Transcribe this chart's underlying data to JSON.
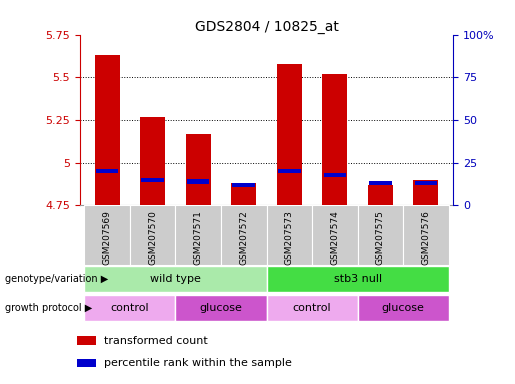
{
  "title": "GDS2804 / 10825_at",
  "samples": [
    "GSM207569",
    "GSM207570",
    "GSM207571",
    "GSM207572",
    "GSM207573",
    "GSM207574",
    "GSM207575",
    "GSM207576"
  ],
  "red_values": [
    5.63,
    5.27,
    5.17,
    4.88,
    5.58,
    5.52,
    4.87,
    4.9
  ],
  "blue_values": [
    4.95,
    4.9,
    4.89,
    4.87,
    4.95,
    4.93,
    4.88,
    4.88
  ],
  "y_min": 4.75,
  "y_max": 5.75,
  "y_ticks": [
    4.75,
    5.0,
    5.25,
    5.5,
    5.75
  ],
  "y_tick_labels": [
    "4.75",
    "5",
    "5.25",
    "5.5",
    "5.75"
  ],
  "right_y_ticks": [
    0,
    25,
    50,
    75,
    100
  ],
  "right_y_labels": [
    "0",
    "25",
    "50",
    "75",
    "100%"
  ],
  "bar_color": "#cc0000",
  "blue_color": "#0000cc",
  "genotype_groups": [
    {
      "label": "wild type",
      "start": 0,
      "end": 4,
      "color": "#aaeaaa"
    },
    {
      "label": "stb3 null",
      "start": 4,
      "end": 8,
      "color": "#44dd44"
    }
  ],
  "protocol_groups": [
    {
      "label": "control",
      "start": 0,
      "end": 2,
      "color": "#eeaaee"
    },
    {
      "label": "glucose",
      "start": 2,
      "end": 4,
      "color": "#cc55cc"
    },
    {
      "label": "control",
      "start": 4,
      "end": 6,
      "color": "#eeaaee"
    },
    {
      "label": "glucose",
      "start": 6,
      "end": 8,
      "color": "#cc55cc"
    }
  ],
  "legend_items": [
    {
      "color": "#cc0000",
      "label": "transformed count"
    },
    {
      "color": "#0000cc",
      "label": "percentile rank within the sample"
    }
  ],
  "bar_width": 0.55,
  "background_color": "#ffffff",
  "tick_color_left": "#cc0000",
  "tick_color_right": "#0000bb",
  "sample_bg": "#cccccc"
}
